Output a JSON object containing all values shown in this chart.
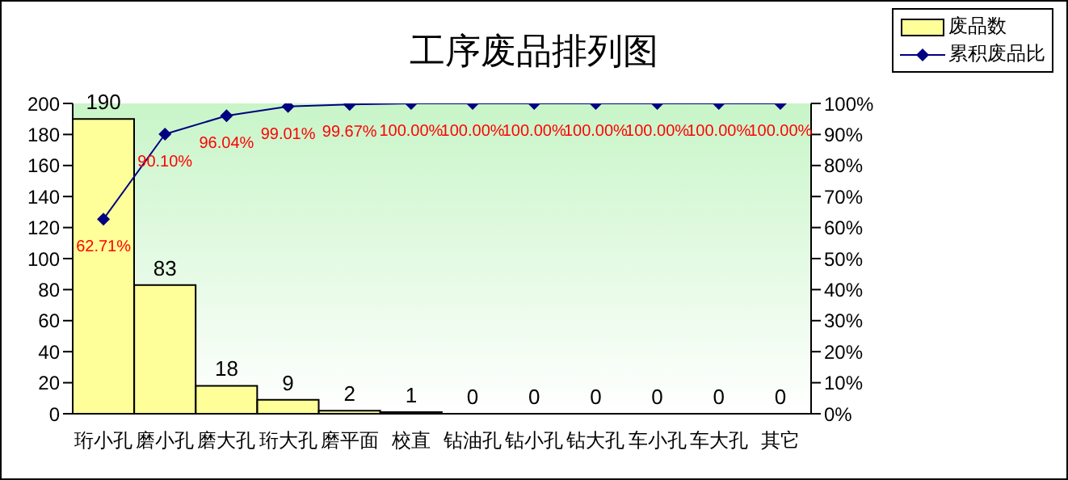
{
  "chart_data": {
    "type": "bar",
    "title": "工序废品排列图",
    "categories": [
      "珩小孔",
      "磨小孔",
      "磨大孔",
      "珩大孔",
      "磨平面",
      "校直",
      "钻油孔",
      "钻小孔",
      "钻大孔",
      "车小孔",
      "车大孔",
      "其它"
    ],
    "series": [
      {
        "name": "废品数",
        "type": "bar",
        "color": "#ffff99",
        "values": [
          190,
          83,
          18,
          9,
          2,
          1,
          0,
          0,
          0,
          0,
          0,
          0
        ]
      },
      {
        "name": "累积废品比",
        "type": "line",
        "axis": "y2",
        "color": "#000080",
        "values": [
          62.71,
          90.1,
          96.04,
          99.01,
          99.67,
          100,
          100,
          100,
          100,
          100,
          100,
          100
        ],
        "value_labels": [
          "62.71%",
          "90.10%",
          "96.04%",
          "99.01%",
          "99.67%",
          "100.00%",
          "100.00%",
          "100.00%",
          "100.00%",
          "100.00%",
          "100.00%",
          "100.00%"
        ]
      }
    ],
    "data_labels": true,
    "marker": "diamond",
    "legend": "top right",
    "ylim": [
      0,
      200
    ],
    "yticks": [
      0,
      20,
      40,
      60,
      80,
      100,
      120,
      140,
      160,
      180,
      200
    ],
    "y2lim": [
      0,
      100
    ],
    "y2ticks": [
      {
        "value": 0,
        "label": "0%"
      },
      {
        "value": 10,
        "label": "10%"
      },
      {
        "value": 20,
        "label": "20%"
      },
      {
        "value": 30,
        "label": "30%"
      },
      {
        "value": 40,
        "label": "40%"
      },
      {
        "value": 50,
        "label": "50%"
      },
      {
        "value": 60,
        "label": "60%"
      },
      {
        "value": 70,
        "label": "70%"
      },
      {
        "value": 80,
        "label": "80%"
      },
      {
        "value": 90,
        "label": "90%"
      },
      {
        "value": 100,
        "label": "100%"
      }
    ]
  }
}
